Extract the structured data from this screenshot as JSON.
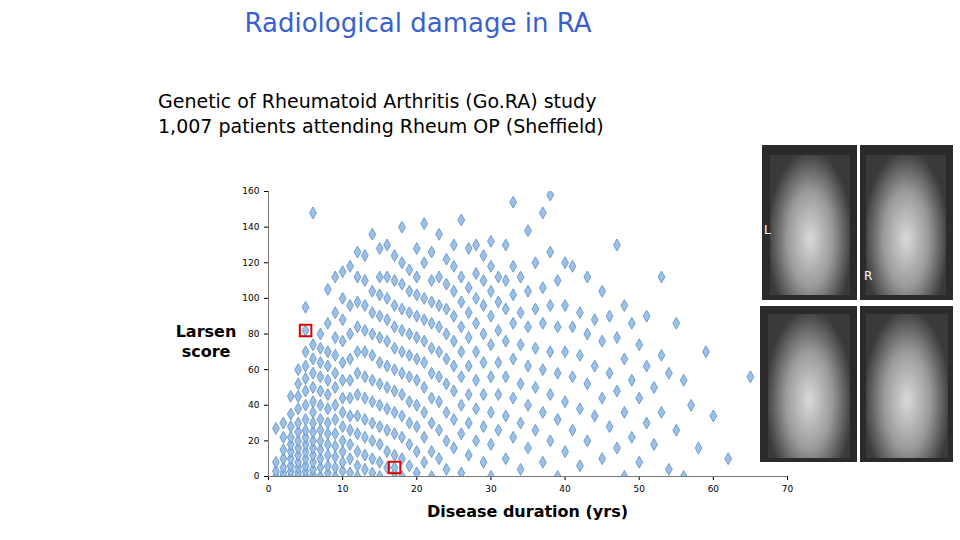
{
  "chart_data": {
    "type": "scatter",
    "title": "Radiological damage in RA",
    "subtitle": [
      "Genetic of Rheumatoid Arthritis (Go.RA) study",
      "1,007 patients attending Rheum OP (Sheffield)"
    ],
    "xlabel": "Disease duration (yrs)",
    "ylabel": "Larsen score",
    "xlim": [
      0,
      70
    ],
    "xticks": [
      0,
      10,
      20,
      30,
      40,
      50,
      60,
      70
    ],
    "ylim": [
      0,
      160
    ],
    "yticks": [
      0,
      20,
      40,
      60,
      80,
      100,
      120,
      140,
      160
    ],
    "grid": false,
    "color": "#9cc0e6",
    "marker": "diamond",
    "highlighted": {
      "points": [
        [
          5,
          82
        ],
        [
          17,
          5
        ]
      ],
      "color": "#e00000",
      "marker": "square"
    },
    "image_labels": [
      "L",
      "R"
    ],
    "points": [
      [
        1,
        0
      ],
      [
        1,
        3
      ],
      [
        1,
        8
      ],
      [
        1,
        27
      ],
      [
        2,
        0
      ],
      [
        2,
        2
      ],
      [
        2,
        5
      ],
      [
        2,
        10
      ],
      [
        2,
        15
      ],
      [
        2,
        22
      ],
      [
        2,
        30
      ],
      [
        3,
        0
      ],
      [
        3,
        3
      ],
      [
        3,
        6
      ],
      [
        3,
        10
      ],
      [
        3,
        14
      ],
      [
        3,
        18
      ],
      [
        3,
        22
      ],
      [
        3,
        28
      ],
      [
        3,
        35
      ],
      [
        3,
        45
      ],
      [
        4,
        0
      ],
      [
        4,
        2
      ],
      [
        4,
        5
      ],
      [
        4,
        8
      ],
      [
        4,
        12
      ],
      [
        4,
        16
      ],
      [
        4,
        20
      ],
      [
        4,
        25
      ],
      [
        4,
        30
      ],
      [
        4,
        38
      ],
      [
        4,
        45
      ],
      [
        4,
        52
      ],
      [
        4,
        60
      ],
      [
        5,
        0
      ],
      [
        5,
        3
      ],
      [
        5,
        6
      ],
      [
        5,
        10
      ],
      [
        5,
        14
      ],
      [
        5,
        18
      ],
      [
        5,
        22
      ],
      [
        5,
        26
      ],
      [
        5,
        32
      ],
      [
        5,
        40
      ],
      [
        5,
        48
      ],
      [
        5,
        55
      ],
      [
        5,
        62
      ],
      [
        5,
        70
      ],
      [
        5,
        82
      ],
      [
        5,
        95
      ],
      [
        6,
        1
      ],
      [
        6,
        4
      ],
      [
        6,
        8
      ],
      [
        6,
        12
      ],
      [
        6,
        16
      ],
      [
        6,
        20
      ],
      [
        6,
        25
      ],
      [
        6,
        30
      ],
      [
        6,
        36
      ],
      [
        6,
        42
      ],
      [
        6,
        50
      ],
      [
        6,
        58
      ],
      [
        6,
        66
      ],
      [
        6,
        74
      ],
      [
        6,
        148
      ],
      [
        7,
        0
      ],
      [
        7,
        5
      ],
      [
        7,
        10
      ],
      [
        7,
        15
      ],
      [
        7,
        20
      ],
      [
        7,
        26
      ],
      [
        7,
        32
      ],
      [
        7,
        40
      ],
      [
        7,
        48
      ],
      [
        7,
        56
      ],
      [
        7,
        64
      ],
      [
        7,
        72
      ],
      [
        7,
        80
      ],
      [
        8,
        2
      ],
      [
        8,
        6
      ],
      [
        8,
        12
      ],
      [
        8,
        18
      ],
      [
        8,
        24
      ],
      [
        8,
        30
      ],
      [
        8,
        38
      ],
      [
        8,
        46
      ],
      [
        8,
        54
      ],
      [
        8,
        62
      ],
      [
        8,
        70
      ],
      [
        8,
        86
      ],
      [
        8,
        105
      ],
      [
        9,
        0
      ],
      [
        9,
        5
      ],
      [
        9,
        11
      ],
      [
        9,
        17
      ],
      [
        9,
        24
      ],
      [
        9,
        32
      ],
      [
        9,
        40
      ],
      [
        9,
        50
      ],
      [
        9,
        58
      ],
      [
        9,
        68
      ],
      [
        9,
        78
      ],
      [
        9,
        92
      ],
      [
        9,
        112
      ],
      [
        10,
        3
      ],
      [
        10,
        8
      ],
      [
        10,
        14
      ],
      [
        10,
        20
      ],
      [
        10,
        28
      ],
      [
        10,
        36
      ],
      [
        10,
        44
      ],
      [
        10,
        54
      ],
      [
        10,
        64
      ],
      [
        10,
        76
      ],
      [
        10,
        88
      ],
      [
        10,
        100
      ],
      [
        10,
        115
      ],
      [
        11,
        2
      ],
      [
        11,
        10
      ],
      [
        11,
        18
      ],
      [
        11,
        26
      ],
      [
        11,
        34
      ],
      [
        11,
        44
      ],
      [
        11,
        54
      ],
      [
        11,
        66
      ],
      [
        11,
        80
      ],
      [
        11,
        96
      ],
      [
        11,
        118
      ],
      [
        12,
        0
      ],
      [
        12,
        6
      ],
      [
        12,
        14
      ],
      [
        12,
        24
      ],
      [
        12,
        34
      ],
      [
        12,
        46
      ],
      [
        12,
        58
      ],
      [
        12,
        70
      ],
      [
        12,
        84
      ],
      [
        12,
        98
      ],
      [
        12,
        112
      ],
      [
        12,
        126
      ],
      [
        13,
        4
      ],
      [
        13,
        12
      ],
      [
        13,
        22
      ],
      [
        13,
        32
      ],
      [
        13,
        44
      ],
      [
        13,
        56
      ],
      [
        13,
        70
      ],
      [
        13,
        82
      ],
      [
        13,
        96
      ],
      [
        13,
        110
      ],
      [
        13,
        124
      ],
      [
        14,
        2
      ],
      [
        14,
        10
      ],
      [
        14,
        20
      ],
      [
        14,
        30
      ],
      [
        14,
        42
      ],
      [
        14,
        54
      ],
      [
        14,
        68
      ],
      [
        14,
        80
      ],
      [
        14,
        92
      ],
      [
        14,
        104
      ],
      [
        14,
        136
      ],
      [
        15,
        0
      ],
      [
        15,
        8
      ],
      [
        15,
        18
      ],
      [
        15,
        28
      ],
      [
        15,
        40
      ],
      [
        15,
        52
      ],
      [
        15,
        64
      ],
      [
        15,
        78
      ],
      [
        15,
        90
      ],
      [
        15,
        102
      ],
      [
        15,
        112
      ],
      [
        15,
        128
      ],
      [
        16,
        5
      ],
      [
        16,
        14
      ],
      [
        16,
        26
      ],
      [
        16,
        38
      ],
      [
        16,
        50
      ],
      [
        16,
        62
      ],
      [
        16,
        76
      ],
      [
        16,
        88
      ],
      [
        16,
        100
      ],
      [
        16,
        112
      ],
      [
        16,
        130
      ],
      [
        17,
        2
      ],
      [
        17,
        5
      ],
      [
        17,
        12
      ],
      [
        17,
        24
      ],
      [
        17,
        36
      ],
      [
        17,
        48
      ],
      [
        17,
        60
      ],
      [
        17,
        72
      ],
      [
        17,
        84
      ],
      [
        17,
        96
      ],
      [
        17,
        110
      ],
      [
        17,
        124
      ],
      [
        18,
        0
      ],
      [
        18,
        10
      ],
      [
        18,
        22
      ],
      [
        18,
        34
      ],
      [
        18,
        46
      ],
      [
        18,
        58
      ],
      [
        18,
        70
      ],
      [
        18,
        82
      ],
      [
        18,
        94
      ],
      [
        18,
        108
      ],
      [
        18,
        120
      ],
      [
        18,
        140
      ],
      [
        19,
        6
      ],
      [
        19,
        18
      ],
      [
        19,
        30
      ],
      [
        19,
        42
      ],
      [
        19,
        56
      ],
      [
        19,
        68
      ],
      [
        19,
        80
      ],
      [
        19,
        92
      ],
      [
        19,
        104
      ],
      [
        19,
        116
      ],
      [
        20,
        2
      ],
      [
        20,
        14
      ],
      [
        20,
        28
      ],
      [
        20,
        40
      ],
      [
        20,
        54
      ],
      [
        20,
        66
      ],
      [
        20,
        78
      ],
      [
        20,
        90
      ],
      [
        20,
        102
      ],
      [
        20,
        112
      ],
      [
        20,
        128
      ],
      [
        21,
        8
      ],
      [
        21,
        22
      ],
      [
        21,
        36
      ],
      [
        21,
        50
      ],
      [
        21,
        64
      ],
      [
        21,
        76
      ],
      [
        21,
        88
      ],
      [
        21,
        100
      ],
      [
        21,
        120
      ],
      [
        21,
        142
      ],
      [
        22,
        0
      ],
      [
        22,
        14
      ],
      [
        22,
        30
      ],
      [
        22,
        44
      ],
      [
        22,
        58
      ],
      [
        22,
        72
      ],
      [
        22,
        86
      ],
      [
        22,
        98
      ],
      [
        22,
        110
      ],
      [
        22,
        126
      ],
      [
        23,
        10
      ],
      [
        23,
        26
      ],
      [
        23,
        42
      ],
      [
        23,
        56
      ],
      [
        23,
        70
      ],
      [
        23,
        84
      ],
      [
        23,
        96
      ],
      [
        23,
        112
      ],
      [
        23,
        136
      ],
      [
        24,
        4
      ],
      [
        24,
        20
      ],
      [
        24,
        36
      ],
      [
        24,
        52
      ],
      [
        24,
        66
      ],
      [
        24,
        80
      ],
      [
        24,
        94
      ],
      [
        24,
        108
      ],
      [
        24,
        122
      ],
      [
        25,
        16
      ],
      [
        25,
        32
      ],
      [
        25,
        48
      ],
      [
        25,
        62
      ],
      [
        25,
        76
      ],
      [
        25,
        90
      ],
      [
        25,
        104
      ],
      [
        25,
        118
      ],
      [
        25,
        130
      ],
      [
        26,
        2
      ],
      [
        26,
        24
      ],
      [
        26,
        40
      ],
      [
        26,
        56
      ],
      [
        26,
        70
      ],
      [
        26,
        84
      ],
      [
        26,
        98
      ],
      [
        26,
        112
      ],
      [
        26,
        144
      ],
      [
        27,
        12
      ],
      [
        27,
        30
      ],
      [
        27,
        46
      ],
      [
        27,
        62
      ],
      [
        27,
        78
      ],
      [
        27,
        92
      ],
      [
        27,
        106
      ],
      [
        27,
        128
      ],
      [
        28,
        20
      ],
      [
        28,
        38
      ],
      [
        28,
        54
      ],
      [
        28,
        70
      ],
      [
        28,
        86
      ],
      [
        28,
        100
      ],
      [
        28,
        114
      ],
      [
        28,
        130
      ],
      [
        29,
        8
      ],
      [
        29,
        28
      ],
      [
        29,
        46
      ],
      [
        29,
        64
      ],
      [
        29,
        80
      ],
      [
        29,
        96
      ],
      [
        29,
        110
      ],
      [
        29,
        124
      ],
      [
        30,
        0
      ],
      [
        30,
        18
      ],
      [
        30,
        36
      ],
      [
        30,
        56
      ],
      [
        30,
        74
      ],
      [
        30,
        90
      ],
      [
        30,
        104
      ],
      [
        30,
        118
      ],
      [
        30,
        132
      ],
      [
        31,
        26
      ],
      [
        31,
        46
      ],
      [
        31,
        64
      ],
      [
        31,
        82
      ],
      [
        31,
        98
      ],
      [
        31,
        112
      ],
      [
        32,
        10
      ],
      [
        32,
        34
      ],
      [
        32,
        56
      ],
      [
        32,
        76
      ],
      [
        32,
        94
      ],
      [
        32,
        110
      ],
      [
        32,
        130
      ],
      [
        33,
        22
      ],
      [
        33,
        44
      ],
      [
        33,
        66
      ],
      [
        33,
        86
      ],
      [
        33,
        102
      ],
      [
        33,
        118
      ],
      [
        33,
        154
      ],
      [
        34,
        4
      ],
      [
        34,
        30
      ],
      [
        34,
        52
      ],
      [
        34,
        74
      ],
      [
        34,
        92
      ],
      [
        34,
        112
      ],
      [
        35,
        16
      ],
      [
        35,
        40
      ],
      [
        35,
        62
      ],
      [
        35,
        84
      ],
      [
        35,
        104
      ],
      [
        35,
        138
      ],
      [
        36,
        26
      ],
      [
        36,
        50
      ],
      [
        36,
        72
      ],
      [
        36,
        94
      ],
      [
        36,
        120
      ],
      [
        37,
        8
      ],
      [
        37,
        36
      ],
      [
        37,
        60
      ],
      [
        37,
        86
      ],
      [
        37,
        106
      ],
      [
        37,
        148
      ],
      [
        38,
        20
      ],
      [
        38,
        46
      ],
      [
        38,
        70
      ],
      [
        38,
        96
      ],
      [
        38,
        126
      ],
      [
        38,
        158
      ],
      [
        39,
        0
      ],
      [
        39,
        32
      ],
      [
        39,
        58
      ],
      [
        39,
        84
      ],
      [
        39,
        110
      ],
      [
        40,
        14
      ],
      [
        40,
        42
      ],
      [
        40,
        70
      ],
      [
        40,
        96
      ],
      [
        40,
        120
      ],
      [
        41,
        26
      ],
      [
        41,
        56
      ],
      [
        41,
        84
      ],
      [
        41,
        118
      ],
      [
        42,
        6
      ],
      [
        42,
        38
      ],
      [
        42,
        68
      ],
      [
        42,
        92
      ],
      [
        43,
        20
      ],
      [
        43,
        52
      ],
      [
        43,
        80
      ],
      [
        43,
        112
      ],
      [
        44,
        34
      ],
      [
        44,
        62
      ],
      [
        44,
        88
      ],
      [
        45,
        10
      ],
      [
        45,
        44
      ],
      [
        45,
        76
      ],
      [
        45,
        104
      ],
      [
        46,
        28
      ],
      [
        46,
        58
      ],
      [
        46,
        90
      ],
      [
        47,
        16
      ],
      [
        47,
        48
      ],
      [
        47,
        78
      ],
      [
        47,
        130
      ],
      [
        48,
        0
      ],
      [
        48,
        36
      ],
      [
        48,
        66
      ],
      [
        48,
        96
      ],
      [
        49,
        22
      ],
      [
        49,
        54
      ],
      [
        49,
        86
      ],
      [
        50,
        8
      ],
      [
        50,
        44
      ],
      [
        50,
        74
      ],
      [
        51,
        30
      ],
      [
        51,
        62
      ],
      [
        51,
        90
      ],
      [
        52,
        18
      ],
      [
        52,
        50
      ],
      [
        53,
        36
      ],
      [
        53,
        68
      ],
      [
        53,
        112
      ],
      [
        54,
        4
      ],
      [
        54,
        58
      ],
      [
        55,
        26
      ],
      [
        55,
        86
      ],
      [
        56,
        0
      ],
      [
        56,
        54
      ],
      [
        57,
        40
      ],
      [
        58,
        16
      ],
      [
        59,
        70
      ],
      [
        60,
        34
      ],
      [
        62,
        10
      ],
      [
        65,
        56
      ]
    ]
  }
}
